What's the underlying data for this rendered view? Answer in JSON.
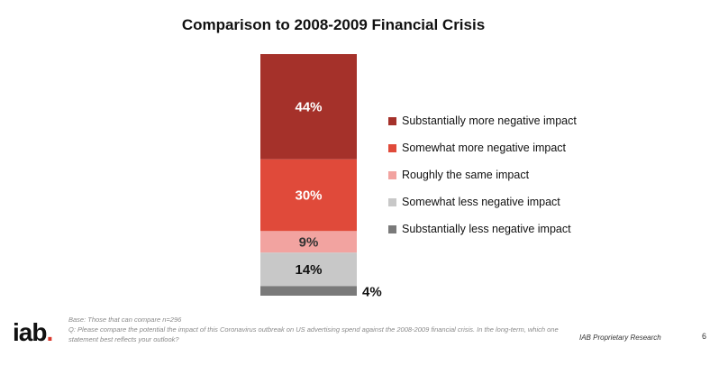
{
  "chart_data": {
    "type": "bar",
    "title": "Comparison to 2008-2009 Financial Crisis",
    "stacked": true,
    "categories": [
      ""
    ],
    "series": [
      {
        "name": "Substantially more negative impact",
        "values": [
          44
        ],
        "label": "44%",
        "color": "#a5312a"
      },
      {
        "name": "Somewhat more negative impact",
        "values": [
          30
        ],
        "label": "30%",
        "color": "#e04a3a"
      },
      {
        "name": "Roughly the same impact",
        "values": [
          9
        ],
        "label": "9%",
        "color": "#f2a3a0"
      },
      {
        "name": "Somewhat less negative impact",
        "values": [
          14
        ],
        "label": "14%",
        "color": "#c8c8c8"
      },
      {
        "name": "Substantially less negative impact",
        "values": [
          4
        ],
        "label": "4%",
        "color": "#7a7a7a"
      }
    ],
    "legend_position": "right"
  },
  "footer": {
    "logo_text": "iab",
    "logo_dot": ".",
    "base_note": "Base: Those that can compare n=296",
    "question_note": "Q: Please compare the potential the impact of this Coronavirus outbreak on US advertising spend against the 2008-2009 financial crisis. In the long-term, which one statement best reflects your outlook?",
    "proprietary": "IAB Proprietary Research",
    "page_number": "6"
  }
}
